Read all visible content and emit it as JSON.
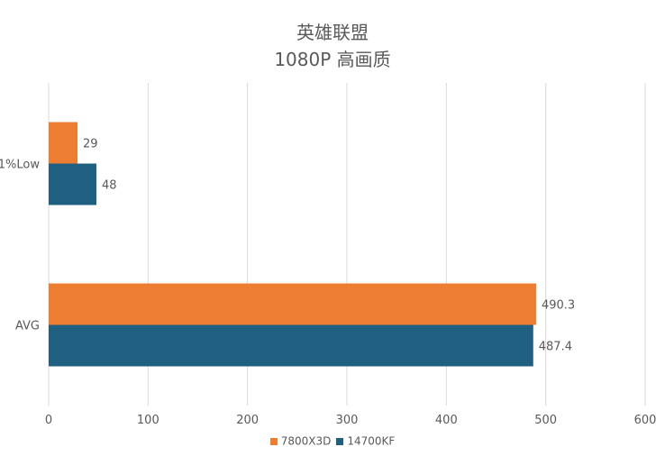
{
  "chart_data": {
    "type": "bar",
    "orientation": "horizontal",
    "title": "英雄联盟",
    "subtitle": "1080P 高画质",
    "categories": [
      "1%Low",
      "AVG"
    ],
    "series": [
      {
        "name": "7800X3D",
        "color": "#ED7D31",
        "values": [
          29,
          490.3
        ]
      },
      {
        "name": "14700KF",
        "color": "#1F5F7F",
        "values": [
          48,
          487.4
        ]
      }
    ],
    "xlim": [
      0,
      600
    ],
    "x_ticks": [
      0,
      100,
      200,
      300,
      400,
      500,
      600
    ],
    "grid": true,
    "legend_position": "bottom",
    "data_labels": true
  }
}
